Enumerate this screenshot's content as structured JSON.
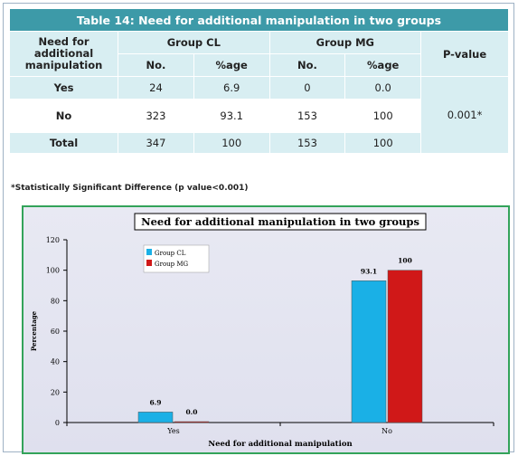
{
  "table": {
    "caption": "Table 14: Need for additional manipulation in two groups",
    "headers": {
      "row_label": "Need for additional manipulation",
      "group_cl": "Group CL",
      "group_mg": "Group MG",
      "p_value": "P-value",
      "no": "No.",
      "page": "%age"
    },
    "rows": [
      {
        "label": "Yes",
        "cl_no": "24",
        "cl_pct": "6.9",
        "mg_no": "0",
        "mg_pct": "0.0"
      },
      {
        "label": "No",
        "cl_no": "323",
        "cl_pct": "93.1",
        "mg_no": "153",
        "mg_pct": "100"
      },
      {
        "label": "Total",
        "cl_no": "347",
        "cl_pct": "100",
        "mg_no": "153",
        "mg_pct": "100"
      }
    ],
    "p_value": "0.001*",
    "footnote": "*Statistically Significant Difference (p value<0.001)"
  },
  "chart_data": {
    "type": "bar",
    "title": "Need for additional manipulation in two groups",
    "categories": [
      "Yes",
      "No"
    ],
    "series": [
      {
        "name": "Group CL",
        "values": [
          6.9,
          93.1
        ],
        "labels": [
          "6.9",
          "93.1"
        ],
        "color": "#1ab0e6"
      },
      {
        "name": "Group MG",
        "values": [
          0.0,
          100
        ],
        "labels": [
          "0.0",
          "100"
        ],
        "color": "#d01818"
      }
    ],
    "xlabel": "Need for additional manipulation",
    "ylabel": "Percentage",
    "ylim": [
      0,
      120
    ],
    "yticks": [
      0,
      20,
      40,
      60,
      80,
      100,
      120
    ],
    "yticklabels": [
      "0",
      "20",
      "40",
      "60",
      "80",
      "100",
      "120"
    ],
    "legend": "top-left",
    "grid": false
  }
}
